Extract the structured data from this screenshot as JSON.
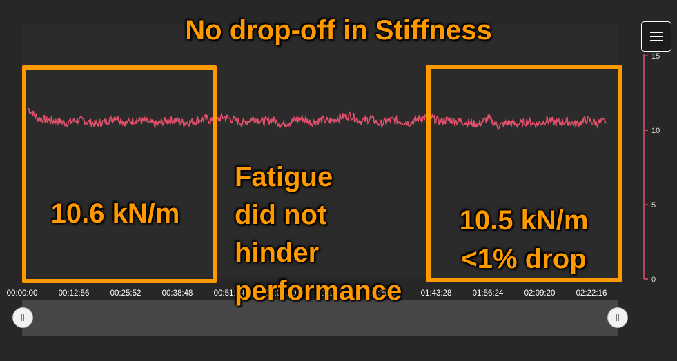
{
  "chart_data": {
    "type": "line",
    "title": "No drop-off in Stiffness",
    "x_tick_labels": [
      "00:00:00",
      "00:12:56",
      "00:25:52",
      "00:38:48",
      "00:51:44",
      "01:04:40",
      "01:17:36",
      "01:30:32",
      "01:43:28",
      "01:56:24",
      "02:09:20",
      "02:22:16"
    ],
    "y_tick_labels": [
      "0",
      "5",
      "10",
      "15"
    ],
    "ylim": [
      0,
      17
    ],
    "x_range_seconds": [
      0,
      9000
    ],
    "series": [
      {
        "color": "#e0506b",
        "x_seconds": [
          0,
          150,
          300,
          450,
          600,
          750,
          900,
          1050,
          1200,
          1350,
          1500,
          1650,
          1800,
          1950,
          2100,
          2250,
          2400,
          2550,
          2700,
          2850,
          3000,
          3150,
          3300,
          3450,
          3600,
          3750,
          3900,
          4050,
          4200,
          4350,
          4500,
          4650,
          4800,
          4950,
          5100,
          5250,
          5400,
          5550,
          5700,
          5850,
          6000,
          6150,
          6300,
          6450,
          6600,
          6750,
          6900,
          7050,
          7200,
          7350,
          7500,
          7650,
          7800,
          7950,
          8100,
          8250,
          8400,
          8550,
          8700,
          8850
        ],
        "values": [
          11.5,
          10.8,
          10.7,
          10.6,
          10.5,
          10.7,
          10.6,
          10.4,
          10.6,
          10.9,
          10.5,
          10.7,
          10.6,
          10.4,
          10.6,
          10.7,
          10.5,
          10.6,
          10.8,
          10.6,
          10.9,
          10.7,
          10.5,
          10.8,
          10.6,
          10.7,
          10.4,
          10.6,
          10.8,
          10.5,
          10.7,
          10.6,
          10.9,
          11.0,
          10.6,
          10.8,
          10.4,
          10.7,
          10.6,
          10.5,
          10.8,
          10.9,
          10.6,
          10.7,
          10.6,
          10.5,
          10.4,
          10.8,
          10.3,
          10.5,
          10.4,
          10.6,
          10.4,
          10.7,
          10.5,
          10.6,
          10.4,
          10.7,
          10.5,
          10.6
        ]
      }
    ],
    "grid": false,
    "legend": "none"
  },
  "annotations": {
    "left_value": "10.6 kN/m",
    "fatigue_lines": [
      "Fatigue",
      "did not",
      "hinder",
      "performance"
    ],
    "right_value_line1": "10.5 kN/m",
    "right_value_line2": "<1% drop"
  },
  "colors": {
    "accent": "#ff9900",
    "series": "#e0506b",
    "background": "#272727"
  },
  "icons": {
    "menu": "hamburger-menu-icon",
    "navigator_handles": "drag-handle-icon"
  }
}
